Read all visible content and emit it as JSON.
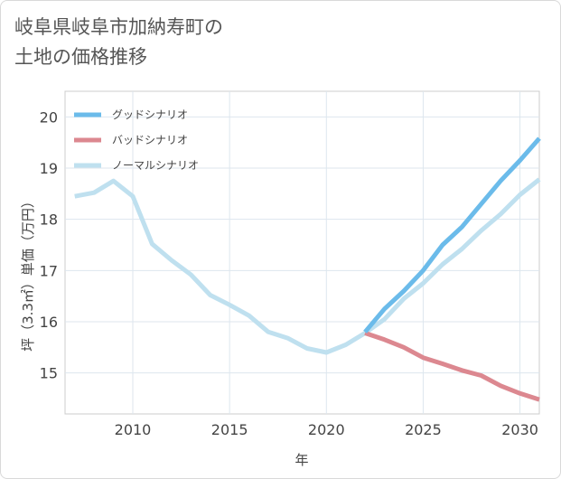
{
  "chart_data": {
    "type": "line",
    "title": "岐阜県岐阜市加納寿町の\n土地の価格推移",
    "xlabel": "年",
    "ylabel": "坪（3.3㎡）単価（万円）",
    "xlim": [
      2006.5,
      2031
    ],
    "ylim": [
      14.2,
      20.5
    ],
    "x_ticks": [
      2010,
      2015,
      2020,
      2025,
      2030
    ],
    "y_ticks": [
      15,
      16,
      17,
      18,
      19,
      20
    ],
    "grid": true,
    "legend_position": "top-left",
    "series": [
      {
        "name": "グッドシナリオ",
        "color": "#6bbbea",
        "x": [
          2022,
          2023,
          2024,
          2025,
          2026,
          2027,
          2028,
          2029,
          2030,
          2031
        ],
        "y": [
          15.8,
          16.25,
          16.6,
          17.0,
          17.5,
          17.85,
          18.3,
          18.75,
          19.15,
          19.58
        ]
      },
      {
        "name": "バッドシナリオ",
        "color": "#dc8890",
        "x": [
          2022,
          2023,
          2024,
          2025,
          2026,
          2027,
          2028,
          2029,
          2030,
          2031
        ],
        "y": [
          15.78,
          15.65,
          15.5,
          15.3,
          15.18,
          15.05,
          14.95,
          14.75,
          14.6,
          14.48
        ]
      },
      {
        "name": "ノーマルシナリオ",
        "color": "#bfe0ef",
        "x": [
          2007,
          2008,
          2009,
          2010,
          2011,
          2012,
          2013,
          2014,
          2015,
          2016,
          2017,
          2018,
          2019,
          2020,
          2021,
          2022,
          2023,
          2024,
          2025,
          2026,
          2027,
          2028,
          2029,
          2030,
          2031
        ],
        "y": [
          18.45,
          18.52,
          18.75,
          18.45,
          17.52,
          17.2,
          16.92,
          16.52,
          16.33,
          16.12,
          15.8,
          15.68,
          15.48,
          15.4,
          15.55,
          15.78,
          16.05,
          16.45,
          16.75,
          17.12,
          17.42,
          17.78,
          18.1,
          18.48,
          18.78
        ]
      }
    ]
  }
}
